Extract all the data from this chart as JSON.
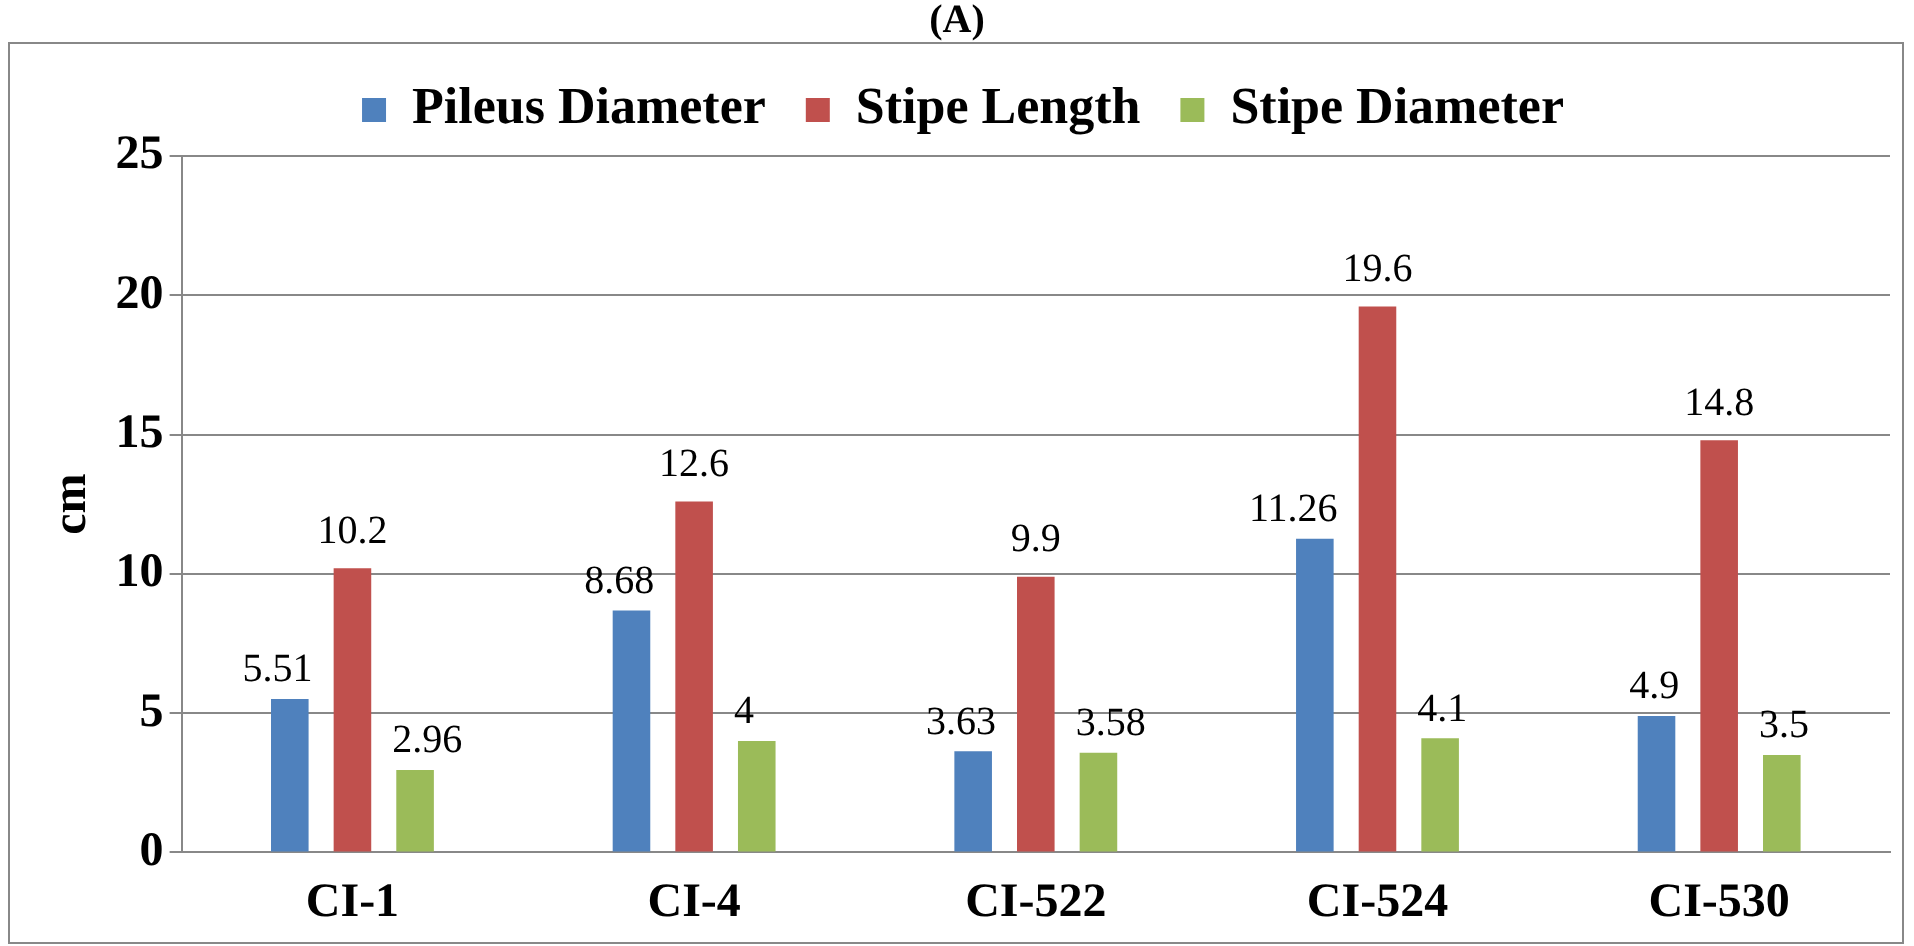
{
  "chart_data": {
    "type": "bar",
    "title": "(A)",
    "ylabel": "cm",
    "categories": [
      "CI-1",
      "CI-4",
      "CI-522",
      "CI-524",
      "CI-530"
    ],
    "series": [
      {
        "name": "Pileus Diameter",
        "color": "#4f81bd",
        "values": [
          5.51,
          8.68,
          3.63,
          11.26,
          4.9
        ]
      },
      {
        "name": "Stipe Length",
        "color": "#c0504d",
        "values": [
          10.2,
          12.6,
          9.9,
          19.6,
          14.8
        ]
      },
      {
        "name": "Stipe Diameter",
        "color": "#9bbb59",
        "values": [
          2.96,
          4,
          3.58,
          4.1,
          3.5
        ]
      }
    ],
    "ylim": [
      0,
      25
    ],
    "yticks": [
      0,
      5,
      10,
      15,
      20,
      25
    ],
    "grid": "y",
    "legend": "top",
    "data_labels": true
  }
}
